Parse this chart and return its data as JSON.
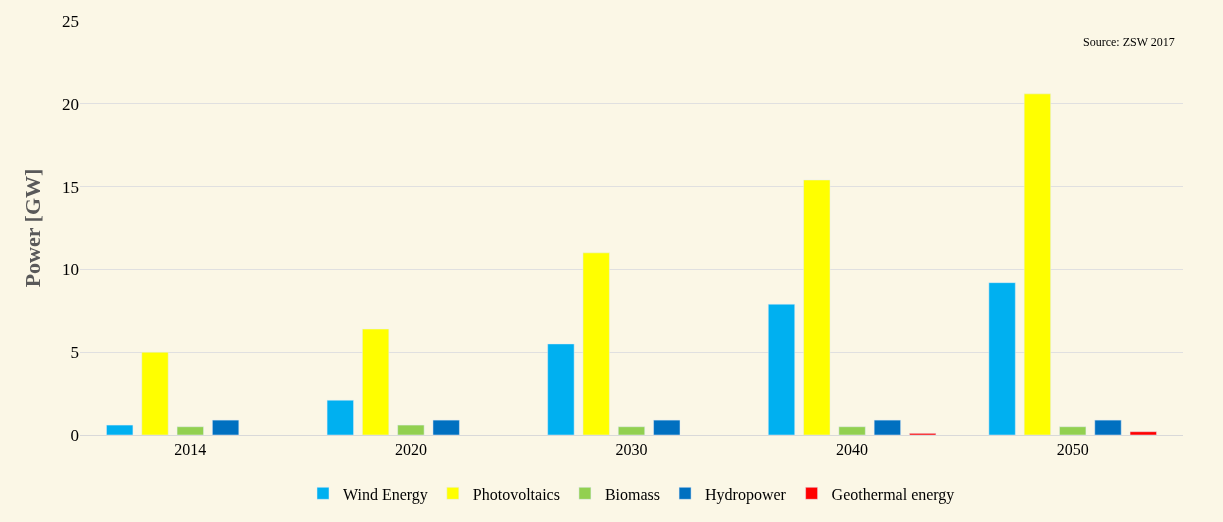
{
  "chart_data": {
    "type": "bar",
    "ylabel": "Power [GW]",
    "categories": [
      "2014",
      "2020",
      "2030",
      "2040",
      "2050"
    ],
    "series": [
      {
        "name": "Wind Energy",
        "color": "#00b0f0",
        "values": [
          0.6,
          2.1,
          5.5,
          7.9,
          9.2
        ]
      },
      {
        "name": "Photovoltaics",
        "color": "#ffff00",
        "values": [
          5.0,
          6.4,
          11.0,
          15.4,
          20.6
        ]
      },
      {
        "name": "Biomass",
        "color": "#92d050",
        "values": [
          0.5,
          0.6,
          0.5,
          0.5,
          0.5
        ]
      },
      {
        "name": "Hydropower",
        "color": "#0070c0",
        "values": [
          0.9,
          0.9,
          0.9,
          0.9,
          0.9
        ]
      },
      {
        "name": "Geothermal energy",
        "color": "#ff0000",
        "values": [
          null,
          null,
          null,
          0.1,
          0.2
        ]
      }
    ],
    "ylim": [
      0,
      25
    ],
    "yticks": [
      0,
      5,
      10,
      15,
      20,
      25
    ],
    "grid": "y",
    "legend": "bottom",
    "annotations": [
      "Source: ZSW 2017"
    ]
  }
}
